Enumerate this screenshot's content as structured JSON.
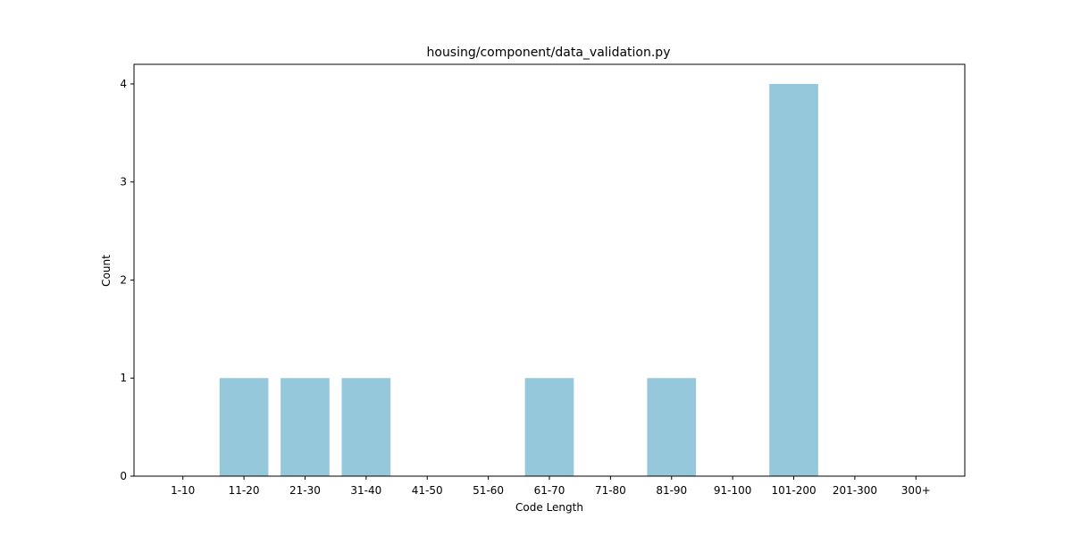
{
  "chart_data": {
    "type": "bar",
    "title": "housing/component/data_validation.py",
    "xlabel": "Code Length",
    "ylabel": "Count",
    "categories": [
      "1-10",
      "11-20",
      "21-30",
      "31-40",
      "41-50",
      "51-60",
      "61-70",
      "71-80",
      "81-90",
      "91-100",
      "101-200",
      "201-300",
      "300+"
    ],
    "values": [
      0,
      1,
      1,
      1,
      0,
      0,
      1,
      0,
      1,
      0,
      4,
      0,
      0
    ],
    "ylim": [
      0,
      4.2
    ],
    "yticks": [
      0,
      1,
      2,
      3,
      4
    ],
    "bar_color": "#96c8dc",
    "grid": false,
    "legend": "none"
  }
}
